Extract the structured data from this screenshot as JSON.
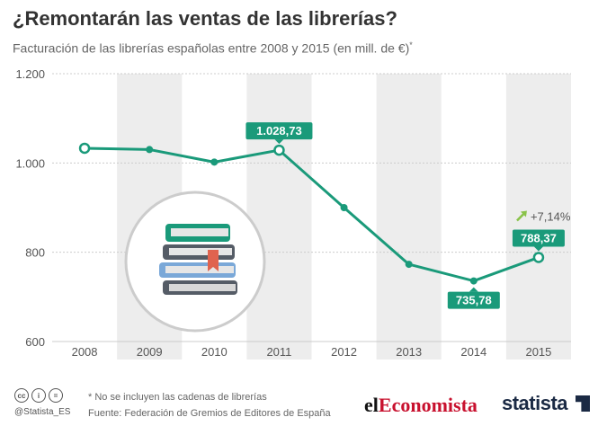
{
  "title": "¿Remontarán las ventas de las librerías?",
  "subtitle": "Facturación de las librerías españolas entre 2008 y 2015 (en mill. de €)",
  "subtitle_mark": "*",
  "chart_data": {
    "type": "line",
    "title": "¿Remontarán las ventas de las librerías?",
    "subtitle": "Facturación de las librerías españolas entre 2008 y 2015 (en mill. de €)",
    "x": [
      "2008",
      "2009",
      "2010",
      "2011",
      "2012",
      "2013",
      "2014",
      "2015"
    ],
    "values": [
      1033,
      1030,
      1002,
      1028.73,
      900,
      773,
      735.78,
      788.37
    ],
    "yticks": [
      600,
      800,
      1000,
      1200
    ],
    "ytick_labels": [
      "600",
      "800",
      "1.000",
      "1.200"
    ],
    "ylim": [
      600,
      1200
    ],
    "data_labels": [
      {
        "index": 3,
        "text": "1.028,73"
      },
      {
        "index": 6,
        "text": "735,78"
      },
      {
        "index": 7,
        "text": "788,37"
      }
    ],
    "annotation": {
      "index": 7,
      "text": "+7,14%"
    },
    "highlighted_points": [
      0,
      3,
      7
    ],
    "grid": true,
    "colors": {
      "line": "#1a9a7a",
      "band": "#ededed",
      "grid": "#cccccc",
      "text": "#555555",
      "arrow": "#8ac34a"
    }
  },
  "footer": {
    "icons": [
      "cc-icon",
      "person-icon",
      "equals-icon"
    ],
    "icon_glyphs": [
      "cc",
      "i",
      "="
    ],
    "handle": "@Statista_ES",
    "note": "* No se incluyen las cadenas de librerías",
    "source": "Fuente: Federación de Gremios de Editores de España",
    "brand1_a": "el",
    "brand1_b": "Economista",
    "brand2": "statista"
  }
}
